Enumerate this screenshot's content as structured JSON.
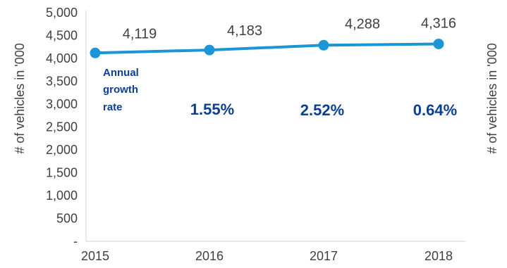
{
  "chart_data": {
    "type": "line",
    "title": "",
    "xlabel": "",
    "ylabel": "# of vehicles in '000",
    "ylabel_right": "# of vehicles in '000",
    "categories": [
      "2015",
      "2016",
      "2017",
      "2018"
    ],
    "series": [
      {
        "values": [
          4119,
          4183,
          4288,
          4316
        ],
        "data_labels": [
          "4,119",
          "4,183",
          "4,288",
          "4,316"
        ],
        "color": "#1b95d6"
      }
    ],
    "ylim": [
      0,
      5000
    ],
    "y_ticks": [
      0,
      500,
      1000,
      1500,
      2000,
      2500,
      3000,
      3500,
      4000,
      4500,
      5000
    ],
    "y_tick_labels": [
      "-",
      "500",
      "1,000",
      "1,500",
      "2,000",
      "2,500",
      "3,000",
      "3,500",
      "4,000",
      "4,500",
      "5,000"
    ],
    "grid": false,
    "legend": "none",
    "annotations": {
      "growth_title_lines": [
        "Annual",
        "growth",
        "rate"
      ],
      "growth_rates": [
        "1.55%",
        "2.52%",
        "0.64%"
      ],
      "growth_color": "#0b3f95"
    },
    "colors": {
      "axis": "#d0d0d0",
      "text": "#404040",
      "line": "#1b95d6",
      "growth": "#0b3f95"
    }
  }
}
